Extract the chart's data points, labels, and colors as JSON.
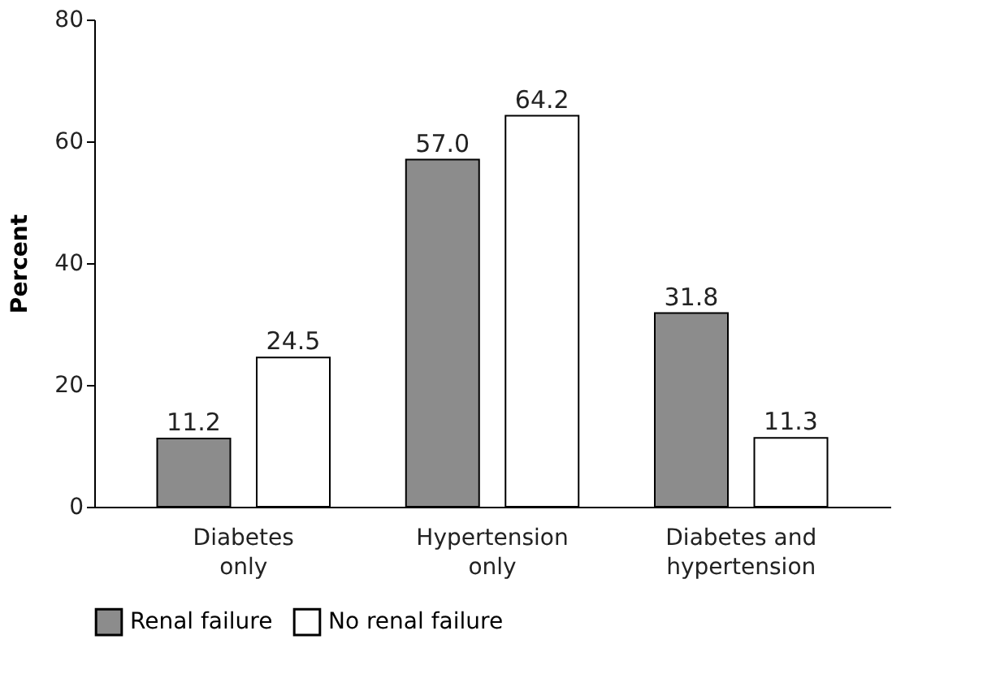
{
  "chart_data": {
    "type": "bar",
    "ylabel": "Percent",
    "categories": [
      "Diabetes\nonly",
      "Hypertension\nonly",
      "Diabetes and\nhypertension"
    ],
    "series": [
      {
        "name": "Renal failure",
        "color": "#8c8c8c",
        "values": [
          11.2,
          57.0,
          31.8
        ],
        "value_labels": [
          "11.2",
          "57.0",
          "31.8"
        ]
      },
      {
        "name": "No renal failure",
        "color": "#ffffff",
        "values": [
          24.5,
          64.2,
          11.3
        ],
        "value_labels": [
          "24.5",
          "64.2",
          "11.3"
        ]
      }
    ],
    "ylim": [
      0,
      80
    ],
    "yticks": [
      0,
      20,
      40,
      60,
      80
    ],
    "grid": false,
    "legend": "bottom"
  }
}
